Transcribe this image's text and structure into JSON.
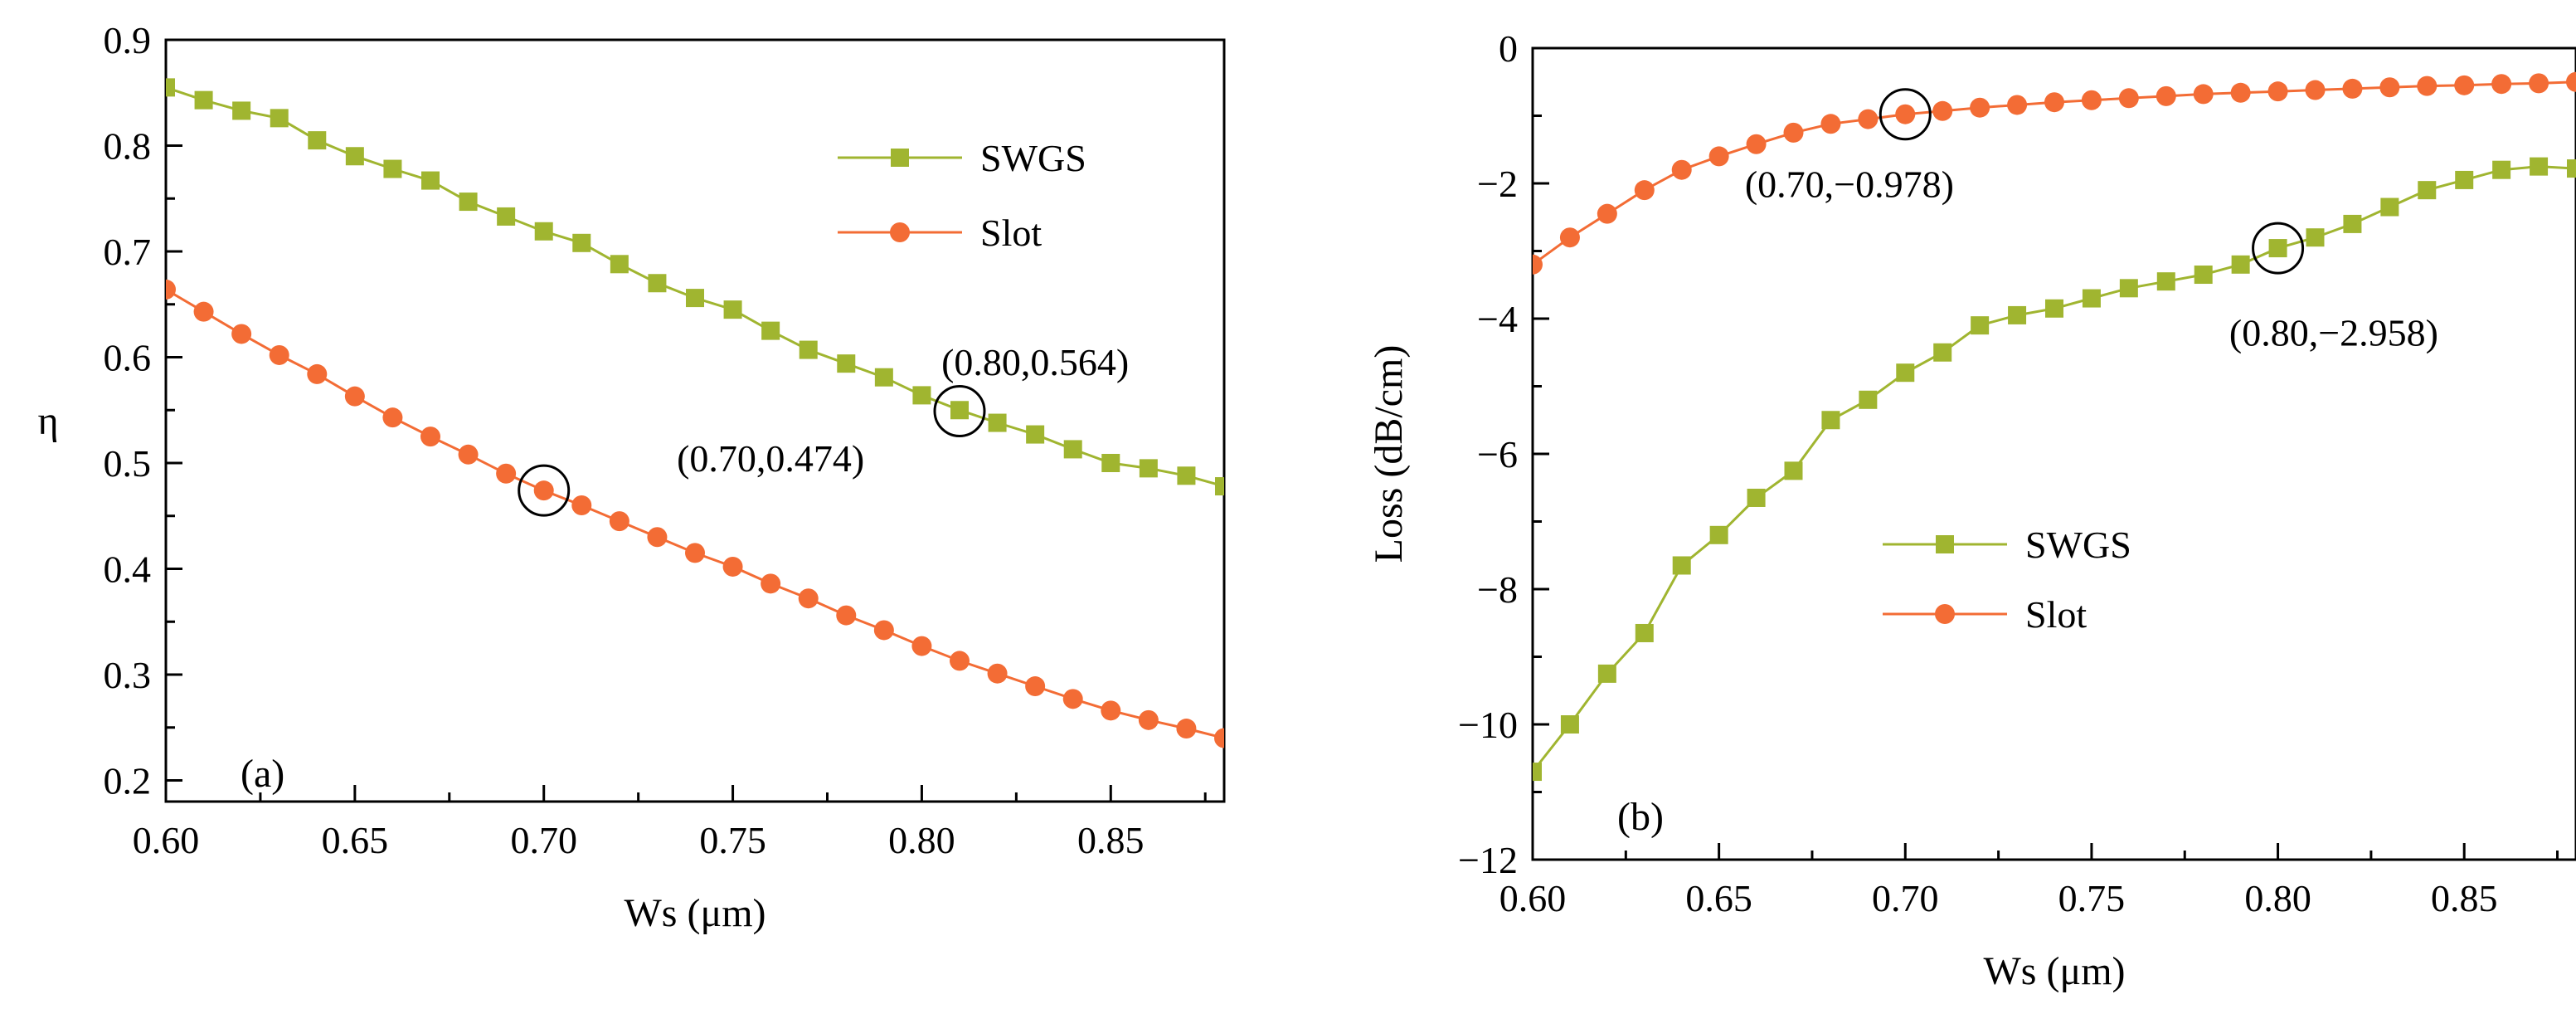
{
  "chart_data": [
    {
      "type": "line",
      "panel_label": "(a)",
      "xlabel": "Ws (μm)",
      "ylabel": "η",
      "xlim": [
        0.6,
        0.88
      ],
      "ylim": [
        0.18,
        0.9
      ],
      "xticks": [
        0.6,
        0.65,
        0.7,
        0.75,
        0.8,
        0.85
      ],
      "xtick_labels": [
        "0.60",
        "0.65",
        "0.70",
        "0.75",
        "0.80",
        "0.85"
      ],
      "yticks": [
        0.2,
        0.3,
        0.4,
        0.5,
        0.6,
        0.7,
        0.8,
        0.9
      ],
      "ytick_labels": [
        "0.2",
        "0.3",
        "0.4",
        "0.5",
        "0.6",
        "0.7",
        "0.8",
        "0.9"
      ],
      "legend_position": "top-right",
      "x": [
        0.6,
        0.61,
        0.62,
        0.63,
        0.64,
        0.65,
        0.66,
        0.67,
        0.68,
        0.69,
        0.7,
        0.71,
        0.72,
        0.73,
        0.74,
        0.75,
        0.76,
        0.77,
        0.78,
        0.79,
        0.8,
        0.81,
        0.82,
        0.83,
        0.84,
        0.85,
        0.86,
        0.87,
        0.88
      ],
      "series": [
        {
          "name": "SWGS",
          "marker": "square",
          "color": "#a0b530",
          "values": [
            0.855,
            0.843,
            0.833,
            0.826,
            0.805,
            0.79,
            0.778,
            0.767,
            0.747,
            0.733,
            0.719,
            0.708,
            0.688,
            0.67,
            0.656,
            0.645,
            0.625,
            0.607,
            0.594,
            0.581,
            0.564,
            0.55,
            0.538,
            0.527,
            0.513,
            0.5,
            0.495,
            0.488,
            0.478
          ]
        },
        {
          "name": "Slot",
          "marker": "circle",
          "color": "#f36c35",
          "values": [
            0.664,
            0.643,
            0.622,
            0.602,
            0.584,
            0.563,
            0.543,
            0.525,
            0.508,
            0.49,
            0.474,
            0.46,
            0.445,
            0.43,
            0.415,
            0.402,
            0.386,
            0.372,
            0.356,
            0.342,
            0.327,
            0.313,
            0.301,
            0.289,
            0.277,
            0.266,
            0.257,
            0.249,
            0.24
          ]
        }
      ],
      "annotations": [
        {
          "text": "(0.80,0.564)",
          "x": 0.81,
          "y": 0.549,
          "label_x": 0.83,
          "label_y": 0.583
        },
        {
          "text": "(0.70,0.474)",
          "x": 0.7,
          "y": 0.474,
          "label_x": 0.76,
          "label_y": 0.492
        }
      ]
    },
    {
      "type": "line",
      "panel_label": "(b)",
      "xlabel": "Ws (μm)",
      "ylabel": "Loss (dB/cm)",
      "xlim": [
        0.6,
        0.88
      ],
      "ylim": [
        -12,
        0
      ],
      "xticks": [
        0.6,
        0.65,
        0.7,
        0.75,
        0.8,
        0.85
      ],
      "xtick_labels": [
        "0.60",
        "0.65",
        "0.70",
        "0.75",
        "0.80",
        "0.85"
      ],
      "yticks": [
        -12,
        -10,
        -8,
        -6,
        -4,
        -2,
        0
      ],
      "ytick_labels": [
        "−12",
        "−10",
        "−8",
        "−6",
        "−4",
        "−2",
        "0"
      ],
      "legend_position": "center-right",
      "x": [
        0.6,
        0.61,
        0.62,
        0.63,
        0.64,
        0.65,
        0.66,
        0.67,
        0.68,
        0.69,
        0.7,
        0.71,
        0.72,
        0.73,
        0.74,
        0.75,
        0.76,
        0.77,
        0.78,
        0.79,
        0.8,
        0.81,
        0.82,
        0.83,
        0.84,
        0.85,
        0.86,
        0.87,
        0.88
      ],
      "series": [
        {
          "name": "SWGS",
          "marker": "square",
          "color": "#a0b530",
          "values": [
            -10.7,
            -10.0,
            -9.25,
            -8.65,
            -7.65,
            -7.2,
            -6.65,
            -6.25,
            -5.5,
            -5.2,
            -4.8,
            -4.5,
            -4.1,
            -3.95,
            -3.85,
            -3.7,
            -3.55,
            -3.45,
            -3.35,
            -3.2,
            -2.958,
            -2.8,
            -2.6,
            -2.35,
            -2.1,
            -1.95,
            -1.8,
            -1.75,
            -1.78
          ]
        },
        {
          "name": "Slot",
          "marker": "circle",
          "color": "#f36c35",
          "values": [
            -3.2,
            -2.8,
            -2.45,
            -2.1,
            -1.8,
            -1.6,
            -1.42,
            -1.25,
            -1.12,
            -1.05,
            -0.978,
            -0.93,
            -0.88,
            -0.84,
            -0.8,
            -0.77,
            -0.74,
            -0.71,
            -0.68,
            -0.66,
            -0.64,
            -0.62,
            -0.6,
            -0.58,
            -0.56,
            -0.55,
            -0.53,
            -0.52,
            -0.5
          ]
        }
      ],
      "annotations": [
        {
          "text": "(0.70,−0.978)",
          "x": 0.7,
          "y": -0.978,
          "label_x": 0.685,
          "label_y": -2.2
        },
        {
          "text": "(0.80,−2.958)",
          "x": 0.8,
          "y": -2.958,
          "label_x": 0.815,
          "label_y": -4.4
        }
      ]
    }
  ]
}
